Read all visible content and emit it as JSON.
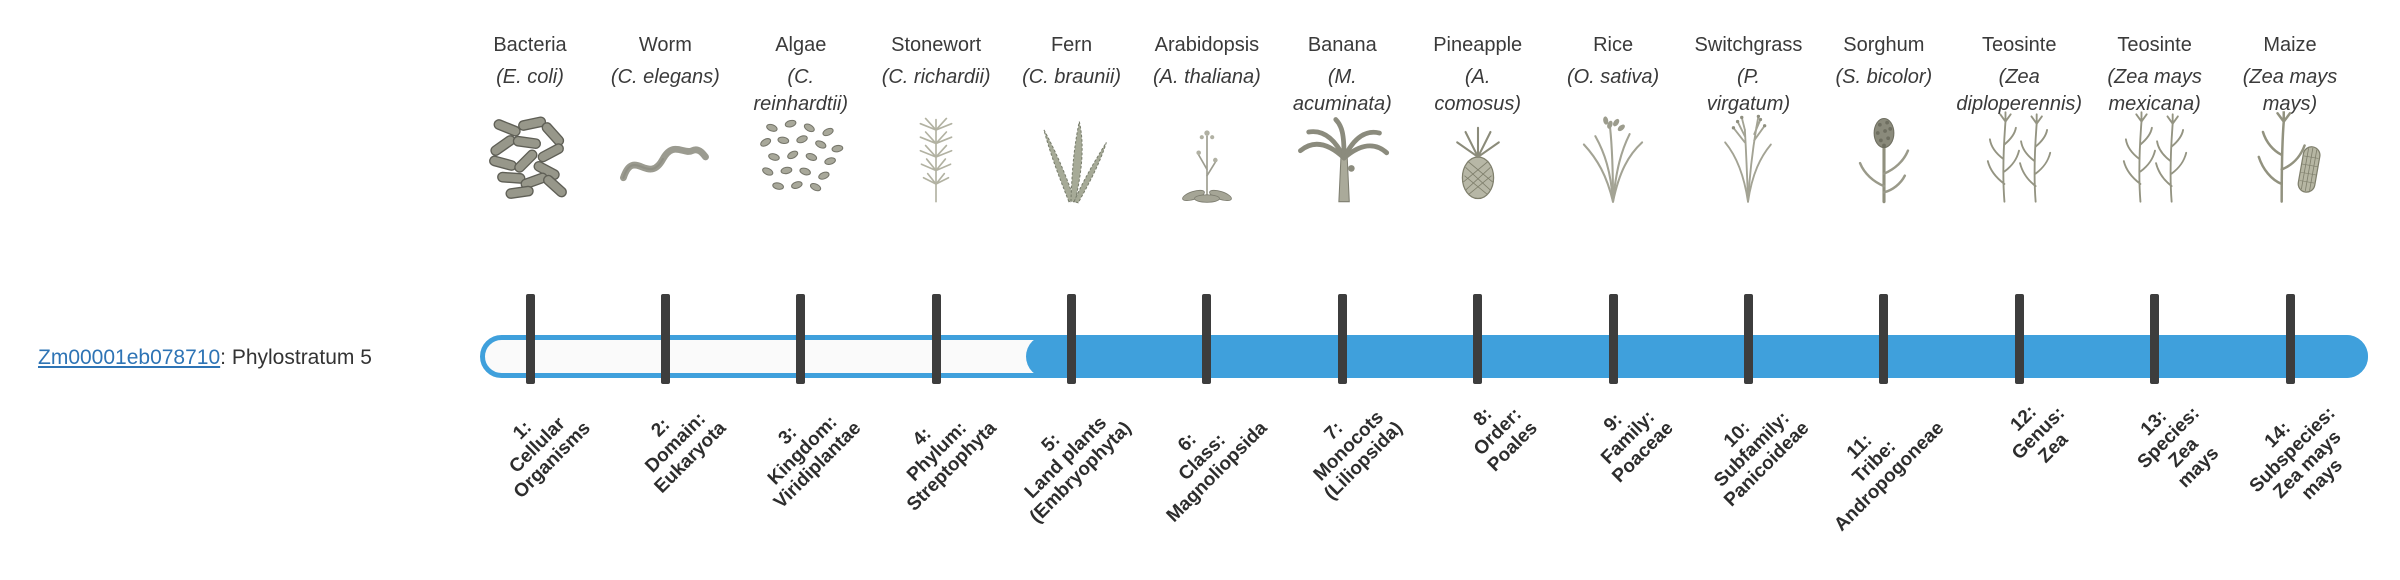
{
  "gene": {
    "id": "Zm00001eb078710",
    "suffix": ": Phylostratum 5",
    "phylostratum": 5
  },
  "colors": {
    "bar_fill": "#3fa0dc",
    "bar_track": "#fafafa",
    "tick": "#3d3d3d",
    "link": "#2e74b5"
  },
  "columns": [
    {
      "name": "Bacteria",
      "sci": "(E. coli)",
      "icon": "bacteria-icon",
      "stratum": "1:\nCellular\nOrganisms"
    },
    {
      "name": "Worm",
      "sci": "(C. elegans)",
      "icon": "worm-icon",
      "stratum": "2:\nDomain:\nEukaryota"
    },
    {
      "name": "Algae",
      "sci": "(C.\nreinhardtii)",
      "icon": "algae-icon",
      "stratum": "3:\nKingdom:\nViridiplantae"
    },
    {
      "name": "Stonewort",
      "sci": "(C. richardii)",
      "icon": "stonewort-icon",
      "stratum": "4:\nPhylum:\nStreptophyta"
    },
    {
      "name": "Fern",
      "sci": "(C. braunii)",
      "icon": "fern-icon",
      "stratum": "5:\nLand plants\n(Embryophyta)"
    },
    {
      "name": "Arabidopsis",
      "sci": "(A. thaliana)",
      "icon": "arabidopsis-icon",
      "stratum": "6:\nClass:\nMagnoliopsida"
    },
    {
      "name": "Banana",
      "sci": "(M.\nacuminata)",
      "icon": "banana-icon",
      "stratum": "7:\nMonocots\n(Liliopsida)"
    },
    {
      "name": "Pineapple",
      "sci": "(A.\ncomosus)",
      "icon": "pineapple-icon",
      "stratum": "8:\nOrder:\nPoales"
    },
    {
      "name": "Rice",
      "sci": "(O. sativa)",
      "icon": "rice-icon",
      "stratum": "9:\nFamily:\nPoaceae"
    },
    {
      "name": "Switchgrass",
      "sci": "(P.\nvirgatum)",
      "icon": "switchgrass-icon",
      "stratum": "10:\nSubfamily:\nPanicoideae"
    },
    {
      "name": "Sorghum",
      "sci": "(S. bicolor)",
      "icon": "sorghum-icon",
      "stratum": "11:\nTribe:\nAndropogoneae"
    },
    {
      "name": "Teosinte",
      "sci": "(Zea\ndiploperennis)",
      "icon": "teosinte-icon",
      "stratum": "12:\nGenus:\nZea"
    },
    {
      "name": "Teosinte",
      "sci": "(Zea mays\nmexicana)",
      "icon": "teosinte-icon",
      "stratum": "13:\nSpecies:\nZea\nmays"
    },
    {
      "name": "Maize",
      "sci": "(Zea mays\nmays)",
      "icon": "maize-icon",
      "stratum": "14:\nSubspecies:\nZea mays\nmays"
    }
  ]
}
